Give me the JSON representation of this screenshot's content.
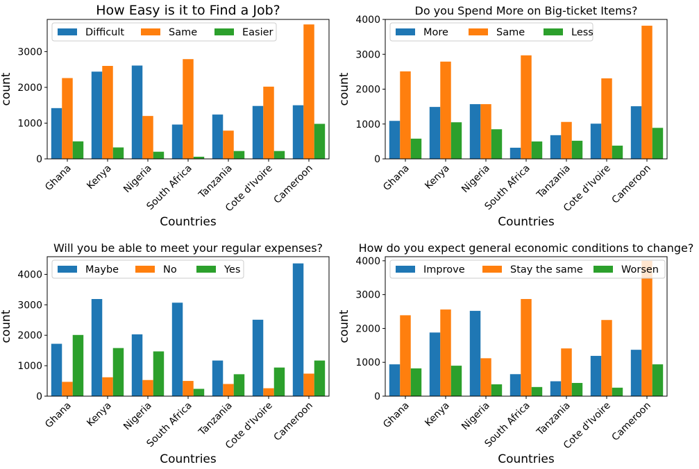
{
  "colors": {
    "blue": "#1f77b4",
    "orange": "#ff7f0e",
    "green": "#2ca02c"
  },
  "chart_data": [
    {
      "type": "bar",
      "title": "How Easy is it to Find a Job?",
      "xlabel": "Countries",
      "ylabel": "count",
      "categories": [
        "Ghana",
        "Kenya",
        "Nigeria",
        "South Africa",
        "Tanzania",
        "Cote d'Ivoire",
        "Cameroon"
      ],
      "series": [
        {
          "name": "Difficult",
          "values": [
            1420,
            2440,
            2610,
            960,
            1240,
            1480,
            1500
          ]
        },
        {
          "name": "Same",
          "values": [
            2260,
            2600,
            1200,
            2790,
            790,
            2020,
            3760
          ]
        },
        {
          "name": "Easier",
          "values": [
            490,
            320,
            200,
            60,
            220,
            220,
            980
          ]
        }
      ],
      "yticks": [
        0,
        1000,
        2000,
        3000
      ],
      "ylim": [
        0,
        3900
      ],
      "legend": "top-left",
      "grid": false
    },
    {
      "type": "bar",
      "title": "Do you Spend More on Big-ticket Items?",
      "xlabel": "Countries",
      "ylabel": "count",
      "categories": [
        "Ghana",
        "Kenya",
        "Nigeria",
        "South Africa",
        "Tanzania",
        "Cote d'Ivoire",
        "Cameroon"
      ],
      "series": [
        {
          "name": "More",
          "values": [
            1090,
            1490,
            1570,
            320,
            680,
            1010,
            1510
          ]
        },
        {
          "name": "Same",
          "values": [
            2510,
            2790,
            1570,
            2970,
            1060,
            2310,
            3820
          ]
        },
        {
          "name": "Less",
          "values": [
            580,
            1050,
            850,
            500,
            520,
            380,
            890
          ]
        }
      ],
      "yticks": [
        0,
        1000,
        2000,
        3000,
        4000
      ],
      "ylim": [
        0,
        4000
      ],
      "legend": "top-left",
      "grid": false
    },
    {
      "type": "bar",
      "title": "Will you be able to meet your regular expenses?",
      "xlabel": "Countries",
      "ylabel": "count",
      "categories": [
        "Ghana",
        "Kenya",
        "Nigeria",
        "South Africa",
        "Tanzania",
        "Cote d'Ivoire",
        "Cameroon"
      ],
      "series": [
        {
          "name": "Maybe",
          "values": [
            1720,
            3190,
            2030,
            3070,
            1170,
            2510,
            4360
          ]
        },
        {
          "name": "No",
          "values": [
            470,
            620,
            530,
            500,
            400,
            260,
            740
          ]
        },
        {
          "name": "Yes",
          "values": [
            2010,
            1580,
            1470,
            240,
            720,
            940,
            1170
          ]
        }
      ],
      "yticks": [
        0,
        1000,
        2000,
        3000,
        4000
      ],
      "ylim": [
        0,
        4580
      ],
      "legend": "top-left",
      "grid": false
    },
    {
      "type": "bar",
      "title": "How do you expect general economic conditions to change?",
      "xlabel": "Countries",
      "ylabel": "count",
      "categories": [
        "Ghana",
        "Kenya",
        "Nigeria",
        "South Africa",
        "Tanzania",
        "Cote d'Ivoire",
        "Cameroon"
      ],
      "series": [
        {
          "name": "Improve",
          "values": [
            940,
            1880,
            2520,
            650,
            440,
            1190,
            1370
          ]
        },
        {
          "name": "Stay the same",
          "values": [
            2390,
            2560,
            1120,
            2870,
            1410,
            2250,
            4000
          ]
        },
        {
          "name": "Worsen",
          "values": [
            820,
            900,
            350,
            270,
            390,
            250,
            940
          ]
        }
      ],
      "yticks": [
        0,
        1000,
        2000,
        3000,
        4000
      ],
      "ylim": [
        0,
        4120
      ],
      "legend": "top-left",
      "grid": false
    }
  ]
}
